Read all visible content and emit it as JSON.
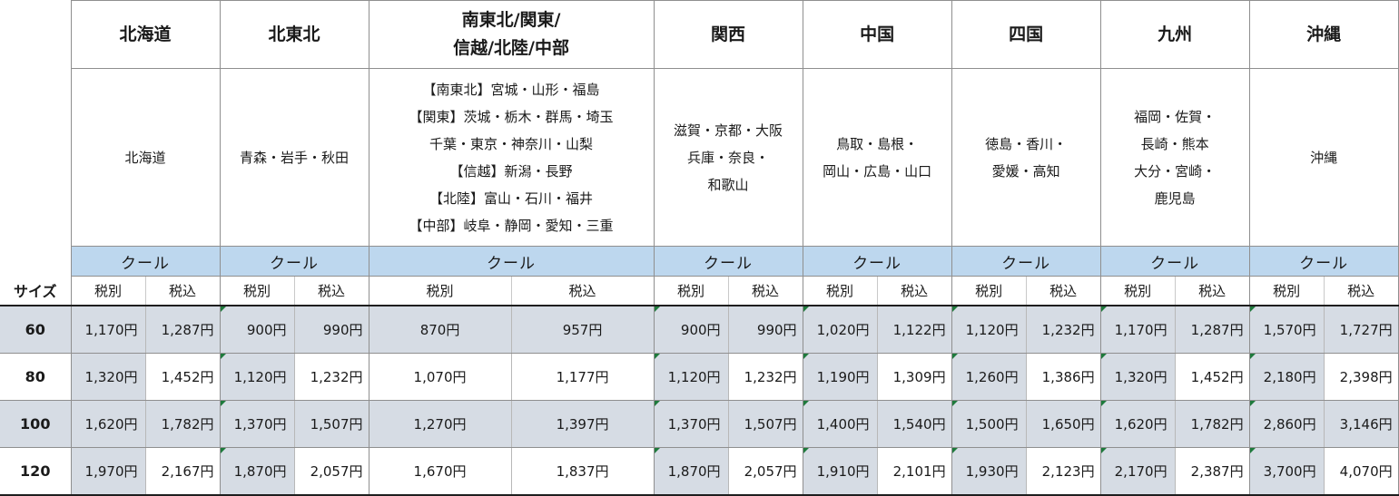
{
  "regions": [
    {
      "name_lines": [
        "北海道"
      ],
      "area_lines": [
        "北海道"
      ]
    },
    {
      "name_lines": [
        "北東北"
      ],
      "area_lines": [
        "青森・岩手・秋田"
      ]
    },
    {
      "name_lines": [
        "南東北/関東/",
        "信越/北陸/中部"
      ],
      "area_lines": [
        "【南東北】宮城・山形・福島",
        "【関東】茨城・栃木・群馬・埼玉",
        "千葉・東京・神奈川・山梨",
        "【信越】新潟・長野",
        "【北陸】富山・石川・福井",
        "【中部】岐阜・静岡・愛知・三重"
      ]
    },
    {
      "name_lines": [
        "関西"
      ],
      "area_lines": [
        "滋賀・京都・大阪",
        "兵庫・奈良・",
        "和歌山"
      ]
    },
    {
      "name_lines": [
        "中国"
      ],
      "area_lines": [
        "鳥取・島根・",
        "岡山・広島・山口"
      ]
    },
    {
      "name_lines": [
        "四国"
      ],
      "area_lines": [
        "徳島・香川・",
        "愛媛・高知"
      ]
    },
    {
      "name_lines": [
        "九州"
      ],
      "area_lines": [
        "福岡・佐賀・",
        "長崎・熊本",
        "大分・宮崎・",
        "鹿児島"
      ]
    },
    {
      "name_lines": [
        "沖縄"
      ],
      "area_lines": [
        "沖縄"
      ]
    }
  ],
  "cool_label": "クール",
  "size_label": "サイズ",
  "tax_excluded_label": "税別",
  "tax_included_label": "税込",
  "sizes": [
    {
      "size": "60",
      "prices": [
        [
          "1,170円",
          "1,287円"
        ],
        [
          "900円",
          "990円"
        ],
        [
          "870円",
          "957円"
        ],
        [
          "900円",
          "990円"
        ],
        [
          "1,020円",
          "1,122円"
        ],
        [
          "1,120円",
          "1,232円"
        ],
        [
          "1,170円",
          "1,287円"
        ],
        [
          "1,570円",
          "1,727円"
        ]
      ]
    },
    {
      "size": "80",
      "prices": [
        [
          "1,320円",
          "1,452円"
        ],
        [
          "1,120円",
          "1,232円"
        ],
        [
          "1,070円",
          "1,177円"
        ],
        [
          "1,120円",
          "1,232円"
        ],
        [
          "1,190円",
          "1,309円"
        ],
        [
          "1,260円",
          "1,386円"
        ],
        [
          "1,320円",
          "1,452円"
        ],
        [
          "2,180円",
          "2,398円"
        ]
      ]
    },
    {
      "size": "100",
      "prices": [
        [
          "1,620円",
          "1,782円"
        ],
        [
          "1,370円",
          "1,507円"
        ],
        [
          "1,270円",
          "1,397円"
        ],
        [
          "1,370円",
          "1,507円"
        ],
        [
          "1,400円",
          "1,540円"
        ],
        [
          "1,500円",
          "1,650円"
        ],
        [
          "1,620円",
          "1,782円"
        ],
        [
          "2,860円",
          "3,146円"
        ]
      ]
    },
    {
      "size": "120",
      "prices": [
        [
          "1,970円",
          "2,167円"
        ],
        [
          "1,870円",
          "2,057円"
        ],
        [
          "1,670円",
          "1,837円"
        ],
        [
          "1,870円",
          "2,057円"
        ],
        [
          "1,910円",
          "2,101円"
        ],
        [
          "1,930円",
          "2,123円"
        ],
        [
          "2,170円",
          "2,387円"
        ],
        [
          "3,700円",
          "4,070円"
        ]
      ]
    }
  ],
  "colors": {
    "cool_band": "#bdd7ee",
    "shaded_cell": "#d6dce4",
    "comment_marker": "#1e7a3c"
  }
}
